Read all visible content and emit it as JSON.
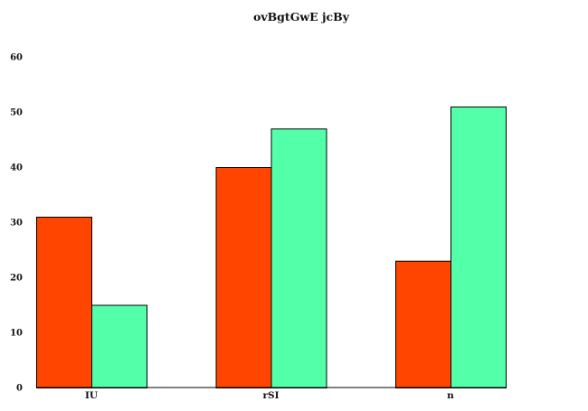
{
  "chart_data": {
    "type": "bar",
    "title": "ovBgtGwE jcBy",
    "xlabel": "",
    "ylabel": "",
    "categories": [
      "IU",
      "rSI",
      "n"
    ],
    "series": [
      {
        "values": [
          31,
          40,
          23
        ],
        "color": "#ff4500"
      },
      {
        "values": [
          15,
          47,
          51
        ],
        "color": "#54ffaa"
      }
    ],
    "ylim": [
      0,
      60
    ],
    "yticks": [
      0,
      10,
      20,
      30,
      40,
      50,
      60
    ],
    "grid": false,
    "legend": "none"
  }
}
